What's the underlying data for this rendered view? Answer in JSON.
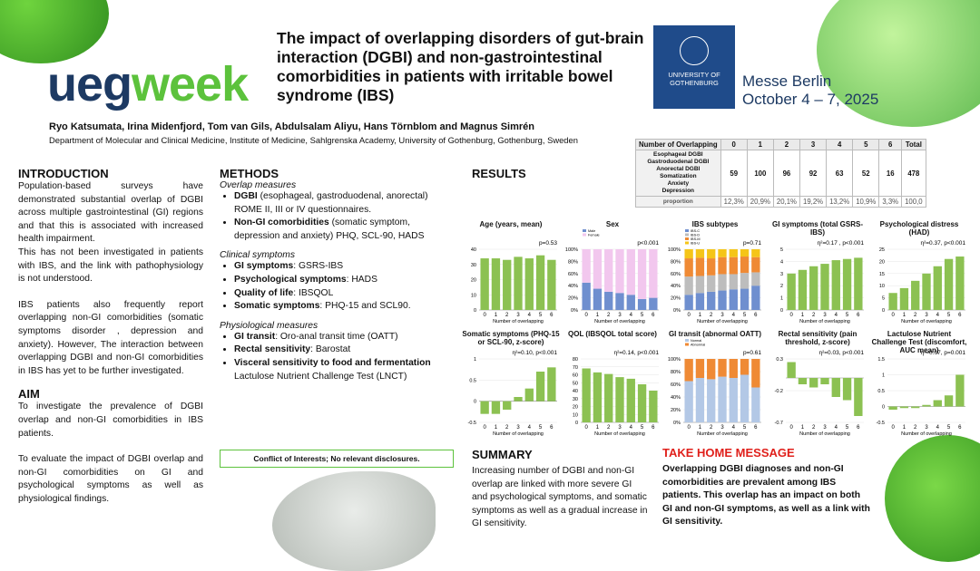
{
  "header": {
    "logo_part1": "ueg",
    "logo_part2": "week",
    "title": "The impact of overlapping disorders of gut-brain interaction (DGBI) and non-gastrointestinal comorbidities in patients with irritable bowel syndrome (IBS)",
    "university_line1": "UNIVERSITY OF",
    "university_line2": "GOTHENBURG",
    "venue_line1": "Messe Berlin",
    "venue_line2": "October 4 – 7, 2025",
    "authors": "Ryo Katsumata, Irina Midenfjord, Tom van Gils, Abdulsalam Aliyu, Hans Törnblom and Magnus Simrén",
    "department": "Department of Molecular and Clinical Medicine, Institute of Medicine, Sahlgrenska Academy, University of Gothenburg, Gothenburg, Sweden"
  },
  "introduction": {
    "heading": "INTRODUCTION",
    "p1": "Population-based surveys have demonstrated substantial overlap of DGBI across multiple gastrointestinal (GI) regions and that this is associated with increased health impairment.",
    "p2": "This has not been investigated in patients with IBS, and the link with pathophysiology is not understood.",
    "p3": "IBS patients also frequently report overlapping non-GI comorbidities (somatic symptoms disorder , depression and anxiety). However, The interaction between overlapping DGBI and non-GI comorbidities in IBS has yet to be further investigated."
  },
  "aim": {
    "heading": "AIM",
    "p1": "To investigate the prevalence of DGBI overlap and non-GI comorbidities in IBS patients.",
    "p2": "To evaluate the impact of DGBI overlap and non-GI comorbidities on GI and psychological symptoms as well as physiological findings."
  },
  "methods": {
    "heading": "METHODS",
    "sub1": "Overlap measures",
    "b1_bold": "DGBI",
    "b1_rest": " (esophageal, gastroduodenal, anorectal) ROME II, III or IV questionnaires.",
    "b2_bold": "Non-GI comorbidities",
    "b2_rest": " (somatic symptom, depression and anxiety) PHQ, SCL-90, HADS",
    "sub2": "Clinical symptoms",
    "b3_bold": "GI symptoms",
    "b3_rest": ": GSRS-IBS",
    "b4_bold": "Psychological symptoms",
    "b4_rest": ": HADS",
    "b5_bold": "Quality of life",
    "b5_rest": ": IBSQOL",
    "b6_bold": "Somatic symptoms",
    "b6_rest": ": PHQ-15 and SCL90.",
    "sub3": "Physiological measures",
    "b7_bold": "GI transit",
    "b7_rest": ": Oro-anal transit time (OATT)",
    "b8_bold": "Rectal sensitivity",
    "b8_rest": ": Barostat",
    "b9_bold": "Visceral sensitivity to food and fermentation",
    "b9_rest": "Lactulose Nutrient Challenge Test (LNCT)"
  },
  "conflict": "Conflict of Interests; No relevant disclosures.",
  "results": {
    "heading": "RESULTS"
  },
  "overlap_table": {
    "header_label": "Number of Overlapping",
    "columns": [
      "0",
      "1",
      "2",
      "3",
      "4",
      "5",
      "6",
      "Total"
    ],
    "row1_labels": [
      "Esophageal DGBI",
      "Gastroduodenal DGBI",
      "Anorectal DGBI",
      "Somatization",
      "Anxiety",
      "Depression"
    ],
    "row1_values": [
      "59",
      "100",
      "96",
      "92",
      "63",
      "52",
      "16",
      "478"
    ],
    "row2_label": "proportion",
    "row2_values": [
      "12,3%",
      "20,9%",
      "20,1%",
      "19,2%",
      "13,2%",
      "10,9%",
      "3,3%",
      "100,0"
    ]
  },
  "summary": {
    "heading": "SUMMARY",
    "text": "Increasing number of DGBI and non-GI overlap are linked with more severe GI and psychological symptoms, and somatic symptoms as well as a gradual increase in GI sensitivity."
  },
  "take_home": {
    "heading": "TAKE HOME MESSAGE",
    "text": "Overlapping DGBI diagnoses and non-GI comorbidities are prevalent among IBS patients. This overlap has an impact on both GI and non-GI symptoms, as well as a link with GI sensitivity."
  },
  "colors": {
    "green": "#8cc152",
    "pink": "#f2c7ee",
    "blue": "#6f8fcf",
    "orange": "#ef8a35",
    "grey": "#bdbdbd",
    "yellow": "#f5c518",
    "lightblue": "#b3c8e6",
    "accent_red": "#e0201b",
    "brand_navy": "#1d3a63"
  },
  "chart_data": [
    {
      "type": "bar",
      "title": "Age (years, mean)",
      "pvalue": "p=0.53",
      "xlabel": "Number of overlapping",
      "categories": [
        "0",
        "1",
        "2",
        "3",
        "4",
        "5",
        "6"
      ],
      "values": [
        34,
        34,
        33,
        35,
        34,
        36,
        33
      ],
      "ylim": [
        0,
        40
      ],
      "yticks": [
        "0",
        "10",
        "20",
        "30",
        "40"
      ]
    },
    {
      "type": "bar",
      "title": "Sex",
      "pvalue": "p<0.001",
      "xlabel": "Number of overlapping",
      "stacked": true,
      "categories": [
        "0",
        "1",
        "2",
        "3",
        "4",
        "5",
        "6"
      ],
      "series": [
        {
          "name": "Male",
          "values": [
            45,
            35,
            30,
            28,
            25,
            18,
            20
          ]
        },
        {
          "name": "Female",
          "values": [
            55,
            65,
            70,
            72,
            75,
            82,
            80
          ]
        }
      ],
      "ylim": [
        0,
        100
      ],
      "yticks": [
        "0%",
        "20%",
        "40%",
        "60%",
        "80%",
        "100%"
      ]
    },
    {
      "type": "bar",
      "title": "IBS subtypes",
      "pvalue": "p=0.71",
      "xlabel": "Number of overlapping",
      "stacked": true,
      "categories": [
        "0",
        "1",
        "2",
        "3",
        "4",
        "5",
        "6"
      ],
      "series": [
        {
          "name": "IBS-C",
          "values": [
            25,
            28,
            30,
            32,
            34,
            35,
            40
          ]
        },
        {
          "name": "IBS-D",
          "values": [
            30,
            28,
            27,
            27,
            25,
            26,
            22
          ]
        },
        {
          "name": "IBS-M",
          "values": [
            30,
            30,
            28,
            28,
            28,
            27,
            25
          ]
        },
        {
          "name": "IBS-U",
          "values": [
            15,
            14,
            15,
            13,
            13,
            12,
            13
          ]
        }
      ],
      "ylim": [
        0,
        100
      ],
      "yticks": [
        "0%",
        "20%",
        "40%",
        "60%",
        "80%",
        "100%"
      ]
    },
    {
      "type": "bar",
      "title": "GI symptoms (total GSRS-IBS)",
      "pvalue": "η²=0.17 , p<0.001",
      "xlabel": "Number of overlapping",
      "categories": [
        "0",
        "1",
        "2",
        "3",
        "4",
        "5",
        "6"
      ],
      "values": [
        3.0,
        3.3,
        3.6,
        3.8,
        4.1,
        4.2,
        4.3
      ],
      "ylim": [
        0,
        5
      ],
      "yticks": [
        "0",
        "1",
        "2",
        "3",
        "4",
        "5"
      ]
    },
    {
      "type": "bar",
      "title": "Psychological distress (HAD)",
      "pvalue": "η²=0.37, p<0.001",
      "xlabel": "Number of overlapping",
      "categories": [
        "0",
        "1",
        "2",
        "3",
        "4",
        "5",
        "6"
      ],
      "values": [
        7,
        9,
        12,
        15,
        18,
        21,
        22
      ],
      "ylim": [
        0,
        25
      ],
      "yticks": [
        "0",
        "5",
        "10",
        "15",
        "20",
        "25"
      ]
    },
    {
      "type": "bar",
      "title": "Somatic symptoms (PHQ-15 or SCL-90, z-score)",
      "pvalue": "η²=0.10, p<0.001",
      "xlabel": "Number of overlapping",
      "categories": [
        "0",
        "1",
        "2",
        "3",
        "4",
        "5",
        "6"
      ],
      "values": [
        -0.3,
        -0.3,
        -0.2,
        0.1,
        0.3,
        0.7,
        0.8
      ],
      "ylim": [
        -0.5,
        1
      ],
      "yticks": [
        "-0.5",
        "0",
        "0.5",
        "1"
      ]
    },
    {
      "type": "bar",
      "title": "QOL (IBSQOL total score)",
      "pvalue": "η²=0.14, p<0.001",
      "xlabel": "Number of overlapping",
      "categories": [
        "0",
        "1",
        "2",
        "3",
        "4",
        "5",
        "6"
      ],
      "values": [
        68,
        63,
        61,
        57,
        55,
        48,
        40
      ],
      "ylim": [
        0,
        80
      ],
      "yticks": [
        "0",
        "10",
        "20",
        "30",
        "40",
        "50",
        "60",
        "70",
        "80"
      ]
    },
    {
      "type": "bar",
      "title": "GI transit (abnormal OATT)",
      "pvalue": "p=0.61",
      "xlabel": "Number of overlapping",
      "stacked": true,
      "categories": [
        "0",
        "1",
        "2",
        "3",
        "4",
        "5",
        "6"
      ],
      "series": [
        {
          "name": "Normal",
          "values": [
            65,
            70,
            68,
            72,
            70,
            75,
            55
          ]
        },
        {
          "name": "Abnormal",
          "values": [
            35,
            30,
            32,
            28,
            30,
            25,
            45
          ]
        }
      ],
      "ylim": [
        0,
        100
      ],
      "yticks": [
        "0%",
        "20%",
        "40%",
        "60%",
        "80%",
        "100%"
      ]
    },
    {
      "type": "bar",
      "title": "Rectal sensitivity (pain threshold, z-score)",
      "pvalue": "η²=0.03, p<0.001",
      "xlabel": "Number of overlapping",
      "categories": [
        "0",
        "1",
        "2",
        "3",
        "4",
        "5",
        "6"
      ],
      "values": [
        0.25,
        -0.1,
        -0.15,
        -0.1,
        -0.3,
        -0.35,
        -0.6
      ],
      "ylim": [
        -0.7,
        0.3
      ],
      "yticks": [
        "-0.7",
        "-0.2",
        "0.3"
      ]
    },
    {
      "type": "bar",
      "title": "Lactulose Nutrient Challenge Test (discomfort, AUC mean)",
      "pvalue": "η²=0.07, p=0.001",
      "xlabel": "Number of overlapping",
      "categories": [
        "0",
        "1",
        "2",
        "3",
        "4",
        "5",
        "6"
      ],
      "values": [
        -0.1,
        -0.05,
        -0.05,
        0.05,
        0.2,
        0.35,
        1.0
      ],
      "ylim": [
        -0.5,
        1.5
      ],
      "yticks": [
        "-0.5",
        "0",
        "0.5",
        "1",
        "1.5"
      ]
    }
  ]
}
